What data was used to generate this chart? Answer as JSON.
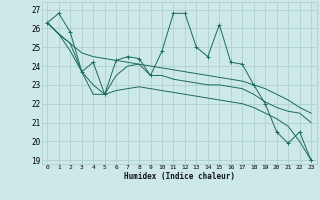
{
  "xlabel": "Humidex (Indice chaleur)",
  "xlim": [
    -0.5,
    23.5
  ],
  "ylim": [
    18.8,
    27.4
  ],
  "xticks": [
    0,
    1,
    2,
    3,
    4,
    5,
    6,
    7,
    8,
    9,
    10,
    11,
    12,
    13,
    14,
    15,
    16,
    17,
    18,
    19,
    20,
    21,
    22,
    23
  ],
  "yticks": [
    19,
    20,
    21,
    22,
    23,
    24,
    25,
    26,
    27
  ],
  "bg_color": "#cce8e8",
  "grid_color": "#aacccc",
  "line_color": "#1a6b5a",
  "series_jagged": [
    26.3,
    26.8,
    25.8,
    23.7,
    24.2,
    22.5,
    24.3,
    24.5,
    24.4,
    23.5,
    24.8,
    26.8,
    26.8,
    25.0,
    24.5,
    26.2,
    24.2,
    24.1,
    23.0,
    22.0,
    20.5,
    19.9,
    20.5,
    19.0
  ],
  "series_upper": [
    26.3,
    25.7,
    25.2,
    24.7,
    24.5,
    24.4,
    24.3,
    24.2,
    24.1,
    24.0,
    23.9,
    23.8,
    23.7,
    23.6,
    23.5,
    23.4,
    23.3,
    23.2,
    23.0,
    22.8,
    22.5,
    22.2,
    21.8,
    21.5
  ],
  "series_mid": [
    26.3,
    25.7,
    25.2,
    23.7,
    23.0,
    22.5,
    23.5,
    24.0,
    24.1,
    23.5,
    23.5,
    23.3,
    23.2,
    23.1,
    23.0,
    23.0,
    22.9,
    22.8,
    22.5,
    22.1,
    21.8,
    21.6,
    21.5,
    21.0
  ],
  "series_lower": [
    26.3,
    25.7,
    24.8,
    23.7,
    22.5,
    22.5,
    22.7,
    22.8,
    22.9,
    22.8,
    22.7,
    22.6,
    22.5,
    22.4,
    22.3,
    22.2,
    22.1,
    22.0,
    21.8,
    21.5,
    21.2,
    20.8,
    20.0,
    19.0
  ]
}
